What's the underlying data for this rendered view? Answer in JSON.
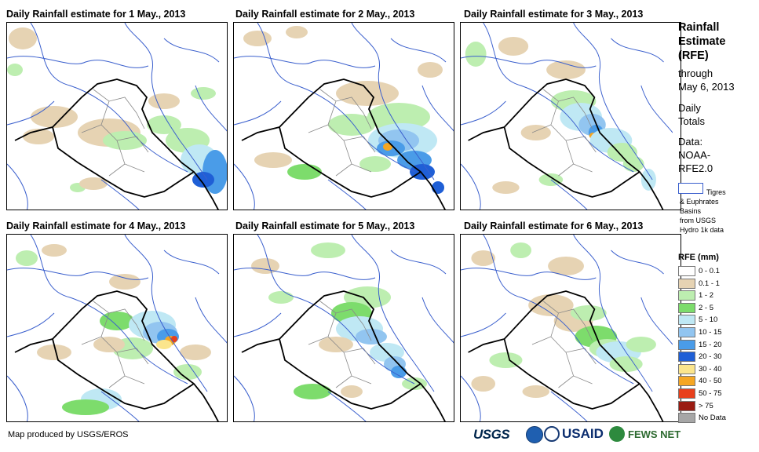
{
  "panels": [
    {
      "title": "Daily Rainfall estimate for 1 May., 2013",
      "day": 1
    },
    {
      "title": "Daily Rainfall estimate for 2 May., 2013",
      "day": 2
    },
    {
      "title": "Daily Rainfall estimate for 3 May., 2013",
      "day": 3
    },
    {
      "title": "Daily Rainfall estimate for 4 May., 2013",
      "day": 4
    },
    {
      "title": "Daily Rainfall estimate for 5 May., 2013",
      "day": 5
    },
    {
      "title": "Daily Rainfall estimate for 6 May., 2013",
      "day": 6
    }
  ],
  "side": {
    "title_lines": [
      "Rainfall",
      "Estimate",
      "(RFE)"
    ],
    "through": "through",
    "date": "May 6, 2013",
    "daily": "Daily",
    "totals": "Totals",
    "data_label": "Data:",
    "data_src1": "NOAA-",
    "data_src2": "RFE2.0",
    "basin_lines": [
      "Tigres",
      "& Euphrates",
      "Basins",
      "from USGS",
      "Hydro 1k data"
    ]
  },
  "legend": {
    "title": "RFE (mm)",
    "items": [
      {
        "label": "0 - 0.1",
        "color": "#ffffff"
      },
      {
        "label": "0.1 - 1",
        "color": "#e6d3b3"
      },
      {
        "label": "1 - 2",
        "color": "#bdeeb0"
      },
      {
        "label": "2 - 5",
        "color": "#7ddc6c"
      },
      {
        "label": "5 - 10",
        "color": "#bfe8f4"
      },
      {
        "label": "10 - 15",
        "color": "#92c5f0"
      },
      {
        "label": "15 - 20",
        "color": "#4a9ce8"
      },
      {
        "label": "20 - 30",
        "color": "#1f5fd6"
      },
      {
        "label": "30 - 40",
        "color": "#fbe58c"
      },
      {
        "label": "40 - 50",
        "color": "#f5a623"
      },
      {
        "label": "50 - 75",
        "color": "#e8401c"
      },
      {
        "label": "> 75",
        "color": "#9a1b12"
      },
      {
        "label": "No Data",
        "color": "#a6a6a6"
      }
    ]
  },
  "credit": "Map produced by USGS/EROS",
  "logos": {
    "usgs": "USGS",
    "usaid": "USAID",
    "fews": "FEWS NET"
  }
}
